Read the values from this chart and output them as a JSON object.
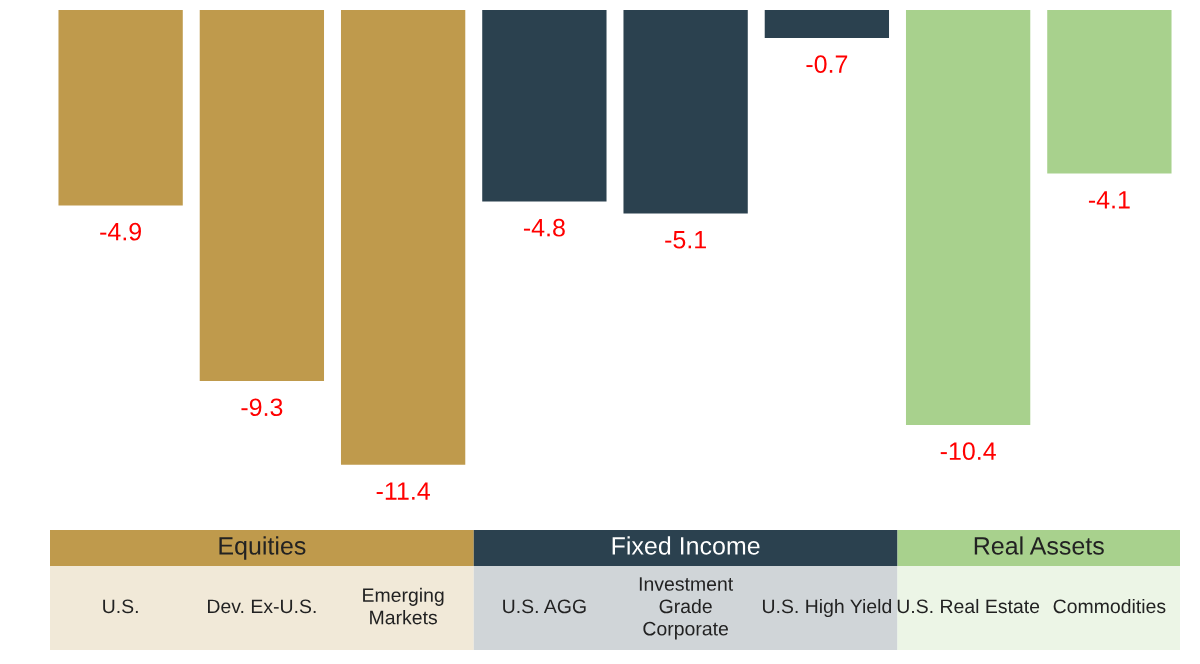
{
  "chart_data": {
    "type": "bar",
    "categories": [
      "U.S.",
      "Dev. Ex-U.S.",
      "Emerging\nMarkets",
      "U.S. AGG",
      "Investment\nGrade\nCorporate",
      "U.S. High Yield",
      "U.S. Real Estate",
      "Commodities"
    ],
    "series": [
      {
        "name": "Equities",
        "color": "#bf9a4c",
        "values": [
          -4.9,
          -9.3,
          -11.4,
          null,
          null,
          null,
          null,
          null
        ]
      },
      {
        "name": "Fixed Income",
        "color": "#2b414f",
        "values": [
          null,
          null,
          null,
          -4.8,
          -5.1,
          -0.7,
          null,
          null
        ]
      },
      {
        "name": "Real Assets",
        "color": "#a8d18d",
        "values": [
          null,
          null,
          null,
          null,
          null,
          null,
          -10.4,
          -4.1
        ]
      }
    ],
    "data_labels": true,
    "legend": "bottom"
  }
}
